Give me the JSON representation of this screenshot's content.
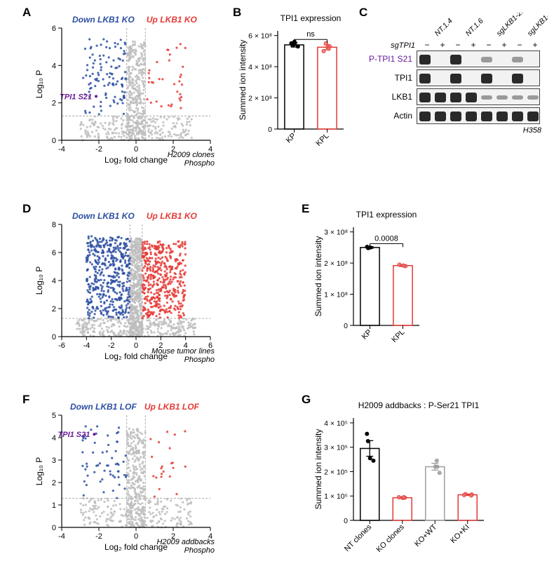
{
  "panel_labels": {
    "A": "A",
    "B": "B",
    "C": "C",
    "D": "D",
    "E": "E",
    "F": "F",
    "G": "G"
  },
  "colors": {
    "blue": "#2b4fa2",
    "red": "#e53935",
    "purple": "#6a1b9a",
    "gray_pt": "#bdbdbd",
    "mid_gray": "#9e9e9e",
    "light_gray": "#d9d9d9",
    "axis": "#000000",
    "bg": "#ffffff",
    "band_dark": "#2a2a2a",
    "band_faint": "#b9b9b9"
  },
  "panelA": {
    "title_left": "Down LKB1 KO",
    "title_right": "Up LKB1 KO",
    "annotation": "TPI1 S21",
    "xlabel": "Log₂ fold change",
    "ylabel": "Log₁₀ P",
    "corner_italic_1": "H2009 clones",
    "corner_italic_2": "Phospho",
    "xlim": [
      -4,
      4
    ],
    "xticks": [
      -4,
      -2,
      0,
      2,
      4
    ],
    "ylim": [
      0,
      6
    ],
    "yticks": [
      0,
      2,
      4,
      6
    ],
    "vdash": [
      -0.5,
      0.5
    ],
    "hdash": 1.3,
    "n_blue": 110,
    "n_red": 35,
    "n_gray": 550,
    "ann_xy": [
      -2.15,
      2.35
    ]
  },
  "panelB": {
    "title": "TPI1 expression",
    "ylabel": "Summed ion intensity",
    "categories": [
      "KP",
      "KPL"
    ],
    "ticks": [
      0,
      2,
      4,
      6
    ],
    "tick_labels": [
      "0",
      "2 × 10⁸",
      "4 × 10⁸",
      "6 × 10⁸"
    ],
    "ymax": 6.3,
    "bar_heights": [
      5.4,
      5.25
    ],
    "bar_colors": [
      "#000000",
      "#e53935"
    ],
    "points": {
      "KP": [
        5.5,
        5.4,
        5.6,
        5.3,
        5.45
      ],
      "KPL": [
        5.0,
        5.3,
        5.25,
        5.15,
        5.5
      ]
    },
    "errs": [
      0.14,
      0.16
    ],
    "bracket_label": "ns"
  },
  "panelC": {
    "samples": [
      "NT.1.4",
      "NT.1.6",
      "sgLKB1-2.1",
      "sgLKB1-3.2"
    ],
    "sgTPI1_label": "sgTPI1",
    "plusminus": [
      "−",
      "+",
      "−",
      "+",
      "−",
      "+",
      "−",
      "+"
    ],
    "rows": [
      {
        "label": "P-TPI1 S21",
        "color": "#6a1b9a",
        "intensity": [
          1,
          0,
          1,
          0,
          0.2,
          0,
          0.18,
          0
        ]
      },
      {
        "label": "TPI1",
        "color": "#000",
        "intensity": [
          1,
          0,
          1,
          0,
          1,
          0,
          1,
          0
        ]
      },
      {
        "label": "LKB1",
        "color": "#000",
        "intensity": [
          1,
          1,
          1,
          1,
          0.03,
          0.03,
          0.03,
          0.03
        ]
      },
      {
        "label": "Actin",
        "color": "#000",
        "intensity": [
          1,
          1,
          1,
          1,
          1,
          1,
          1,
          1
        ]
      }
    ],
    "corner_italic": "H358"
  },
  "panelD": {
    "title_left": "Down LKB1 KO",
    "title_right": "Up LKB1 KO",
    "xlabel": "Log₂ fold change",
    "ylabel": "Log₁₀ P",
    "corner_italic_1": "Mouse tumor lines",
    "corner_italic_2": "Phospho",
    "xlim": [
      -6,
      6
    ],
    "xticks": [
      -6,
      -4,
      -2,
      0,
      2,
      4,
      6
    ],
    "ylim": [
      0,
      8
    ],
    "yticks": [
      0,
      2,
      4,
      6,
      8
    ],
    "vdash": [
      -0.5,
      0.5
    ],
    "hdash": 1.3,
    "n_blue": 450,
    "n_red": 450,
    "n_gray": 800
  },
  "panelE": {
    "title": "TPI1 expression",
    "ylabel": "Summed ion intensity",
    "categories": [
      "KP",
      "KPL"
    ],
    "ticks": [
      0,
      1,
      2,
      3
    ],
    "tick_labels": [
      "0",
      "1 × 10⁸",
      "2 × 10⁸",
      "3 × 10⁸"
    ],
    "ymax": 3.15,
    "bar_heights": [
      2.5,
      1.92
    ],
    "bar_colors": [
      "#000000",
      "#e53935"
    ],
    "points": {
      "KP": [
        2.52,
        2.48,
        2.5
      ],
      "KPL": [
        1.95,
        1.9,
        1.92
      ]
    },
    "errs": [
      0.03,
      0.03
    ],
    "bracket_label": "0.0008"
  },
  "panelF": {
    "title_left": "Down LKB1 LOF",
    "title_right": "Up LKB1 LOF",
    "annotation": "TPI1 S21",
    "xlabel": "Log₂ fold change",
    "ylabel": "Log₁₀ P",
    "corner_italic_1": "H2009 addbacks",
    "corner_italic_2": "Phospho",
    "xlim": [
      -4,
      4
    ],
    "xticks": [
      -4,
      -2,
      0,
      2,
      4
    ],
    "ylim": [
      0,
      5
    ],
    "yticks": [
      0,
      1,
      2,
      3,
      4,
      5
    ],
    "vdash": [
      -0.5,
      0.5
    ],
    "hdash": 1.3,
    "n_blue": 60,
    "n_red": 22,
    "n_gray": 520,
    "ann_xy": [
      -2.25,
      4.15
    ]
  },
  "panelG": {
    "title": "H2009 addbacks : P-Ser21 TPI1",
    "ylabel": "Summed ion intensity",
    "categories": [
      "NT clones",
      "KO clones",
      "KO+WT",
      "KO+KI"
    ],
    "ticks": [
      0,
      1,
      2,
      3,
      4
    ],
    "tick_labels": [
      "0",
      "1 × 10⁵",
      "2 × 10⁵",
      "3 × 10⁵",
      "4 × 10⁵"
    ],
    "ymax": 4.2,
    "bar_heights": [
      2.95,
      0.93,
      2.2,
      1.05
    ],
    "bar_colors": [
      "#000000",
      "#e53935",
      "#9e9e9e",
      "#e53935"
    ],
    "points": {
      "NT clones": [
        3.55,
        3.25,
        2.55,
        2.45
      ],
      "KO clones": [
        0.95,
        0.93,
        0.92,
        0.95
      ],
      "KO+WT": [
        2.45,
        2.2,
        2.2,
        1.95
      ],
      "KO+KI": [
        1.08,
        1.06,
        1.04,
        1.02
      ]
    },
    "errs": [
      0.32,
      0.03,
      0.14,
      0.03
    ]
  }
}
